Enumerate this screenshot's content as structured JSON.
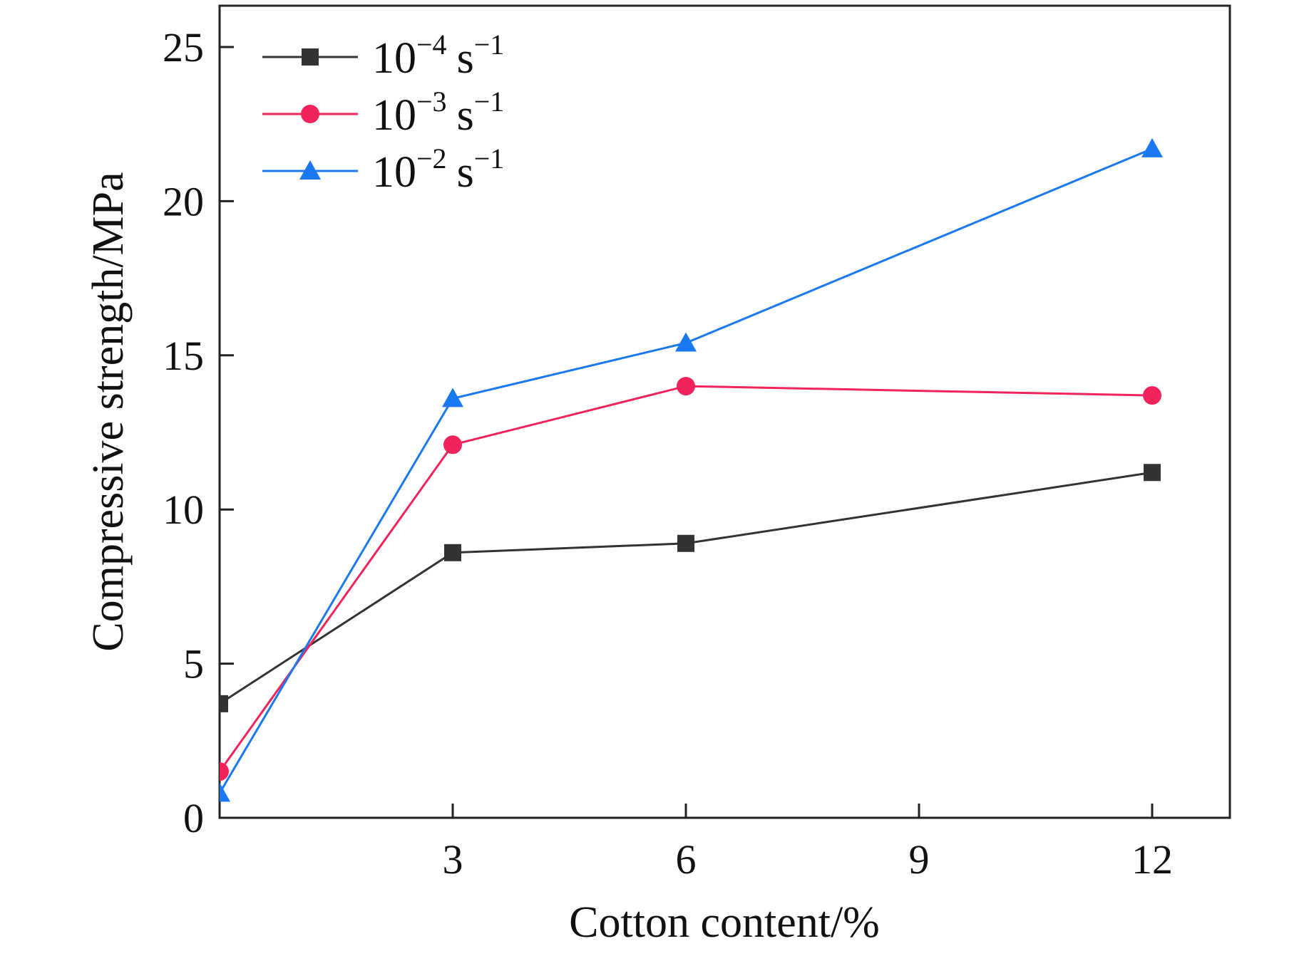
{
  "chart_data": {
    "type": "line",
    "title": "",
    "xlabel": "Cotton content/%",
    "ylabel": "Compressive strength/MPa",
    "xlim": [
      0,
      13
    ],
    "ylim": [
      0,
      25
    ],
    "xticks": [
      3,
      6,
      9,
      12
    ],
    "xtick_labels": [
      "3",
      "6",
      "9",
      "12"
    ],
    "yticks": [
      0,
      5,
      10,
      15,
      20,
      25
    ],
    "ytick_labels": [
      "0",
      "5",
      "10",
      "15",
      "20",
      "25"
    ],
    "grid": false,
    "legend_position": "top-left",
    "series": [
      {
        "name": "10−4 s−1",
        "legend_base": "10",
        "legend_exp": "−4",
        "legend_unit": "s",
        "legend_unit_exp": "−1",
        "marker": "square",
        "color": "#333333",
        "x": [
          0,
          3,
          6,
          12
        ],
        "y": [
          3.7,
          8.6,
          8.9,
          11.2
        ]
      },
      {
        "name": "10−3 s−1",
        "legend_base": "10",
        "legend_exp": "−3",
        "legend_unit": "s",
        "legend_unit_exp": "−1",
        "marker": "circle",
        "color": "#f0245a",
        "x": [
          0,
          3,
          6,
          12
        ],
        "y": [
          1.5,
          12.1,
          14.0,
          13.7
        ]
      },
      {
        "name": "10−2 s−1",
        "legend_base": "10",
        "legend_exp": "−2",
        "legend_unit": "s",
        "legend_unit_exp": "−1",
        "marker": "triangle",
        "color": "#1a78f0",
        "x": [
          0,
          3,
          6,
          12
        ],
        "y": [
          0.8,
          13.6,
          15.4,
          21.7
        ]
      }
    ]
  }
}
